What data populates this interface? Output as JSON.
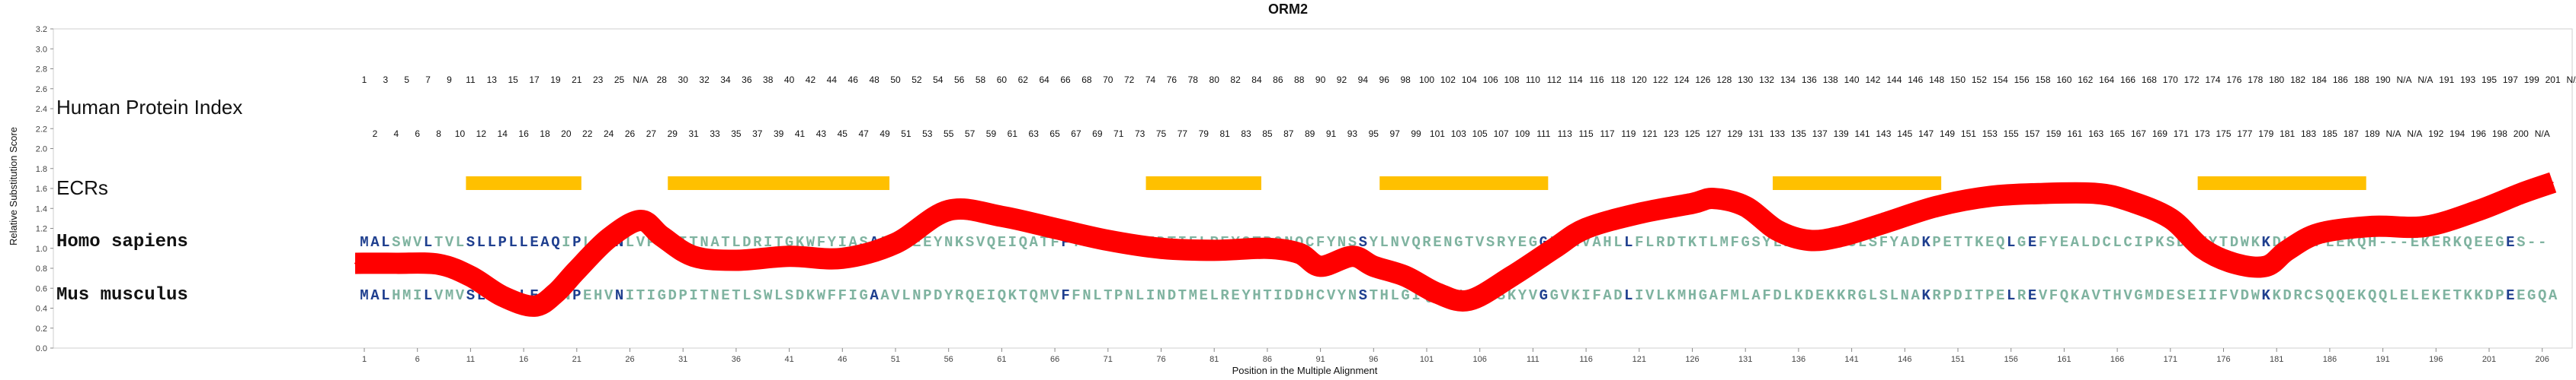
{
  "chart_data": {
    "type": "line",
    "title": "ORM2",
    "xlabel": "Position in the Multiple Alignment",
    "ylabel": "Relative Substitution Score",
    "ylim": [
      0,
      3.2
    ],
    "yticks": [
      "0.0",
      "0.2",
      "0.4",
      "0.6",
      "0.8",
      "1.0",
      "1.2",
      "1.4",
      "1.6",
      "1.8",
      "2.0",
      "2.2",
      "2.4",
      "2.6",
      "2.8",
      "3.0",
      "3.2"
    ],
    "xlim": [
      1,
      207
    ],
    "xtick_labels": [
      "1",
      "6",
      "11",
      "16",
      "21",
      "26",
      "31",
      "36",
      "41",
      "46",
      "51",
      "56",
      "61",
      "66",
      "71",
      "76",
      "81",
      "86",
      "91",
      "96",
      "101",
      "106",
      "111",
      "116",
      "121",
      "126",
      "131",
      "136",
      "141",
      "146",
      "151",
      "156",
      "161",
      "166",
      "171",
      "176",
      "181",
      "186",
      "191",
      "196",
      "201",
      "206"
    ],
    "series": [
      {
        "color": "#ff0000",
        "x": [
          1,
          4,
          8,
          11,
          14,
          17,
          19,
          21,
          24,
          27,
          29,
          32,
          36,
          41,
          46,
          51,
          56,
          61,
          66,
          71,
          76,
          81,
          86,
          89,
          91,
          94,
          96,
          99,
          102,
          105,
          109,
          113,
          116,
          121,
          126,
          128,
          131,
          134,
          137,
          140,
          144,
          149,
          154,
          159,
          164,
          167,
          171,
          174,
          177,
          180,
          182,
          185,
          190,
          195,
          200,
          204,
          207
        ],
        "y": [
          0.85,
          0.85,
          0.84,
          0.72,
          0.52,
          0.42,
          0.55,
          0.78,
          1.1,
          1.28,
          1.12,
          0.92,
          0.88,
          0.92,
          0.9,
          1.05,
          1.38,
          1.32,
          1.2,
          1.08,
          1.0,
          0.98,
          1.0,
          0.95,
          0.82,
          0.92,
          0.82,
          0.72,
          0.55,
          0.48,
          0.72,
          1.0,
          1.2,
          1.35,
          1.45,
          1.5,
          1.42,
          1.18,
          1.08,
          1.12,
          1.25,
          1.42,
          1.52,
          1.55,
          1.55,
          1.48,
          1.3,
          1.0,
          0.85,
          0.82,
          0.98,
          1.15,
          1.22,
          1.22,
          1.38,
          1.55,
          1.66
        ]
      }
    ]
  },
  "human_index_label": "Human Protein Index",
  "human_index_top": [
    "1",
    "3",
    "5",
    "7",
    "9",
    "11",
    "13",
    "15",
    "17",
    "19",
    "21",
    "23",
    "25",
    "N/A",
    "28",
    "30",
    "32",
    "34",
    "36",
    "38",
    "40",
    "42",
    "44",
    "46",
    "48",
    "50",
    "52",
    "54",
    "56",
    "58",
    "60",
    "62",
    "64",
    "66",
    "68",
    "70",
    "72",
    "74",
    "76",
    "78",
    "80",
    "82",
    "84",
    "86",
    "88",
    "90",
    "92",
    "94",
    "96",
    "98",
    "100",
    "102",
    "104",
    "106",
    "108",
    "110",
    "112",
    "114",
    "116",
    "118",
    "120",
    "122",
    "124",
    "126",
    "128",
    "130",
    "132",
    "134",
    "136",
    "138",
    "140",
    "142",
    "144",
    "146",
    "148",
    "150",
    "152",
    "154",
    "156",
    "158",
    "160",
    "162",
    "164",
    "166",
    "168",
    "170",
    "172",
    "174",
    "176",
    "178",
    "180",
    "182",
    "184",
    "186",
    "188",
    "190",
    "N/A",
    "N/A",
    "191",
    "193",
    "195",
    "197",
    "199",
    "201",
    "N/A"
  ],
  "human_index_bottom": [
    "2",
    "4",
    "6",
    "8",
    "10",
    "12",
    "14",
    "16",
    "18",
    "20",
    "22",
    "24",
    "26",
    "27",
    "29",
    "31",
    "33",
    "35",
    "37",
    "39",
    "41",
    "43",
    "45",
    "47",
    "49",
    "51",
    "53",
    "55",
    "57",
    "59",
    "61",
    "63",
    "65",
    "67",
    "69",
    "71",
    "73",
    "75",
    "77",
    "79",
    "81",
    "83",
    "85",
    "87",
    "89",
    "91",
    "93",
    "95",
    "97",
    "99",
    "101",
    "103",
    "105",
    "107",
    "109",
    "111",
    "113",
    "115",
    "117",
    "119",
    "121",
    "123",
    "125",
    "127",
    "129",
    "131",
    "133",
    "135",
    "137",
    "139",
    "141",
    "143",
    "145",
    "147",
    "149",
    "151",
    "153",
    "155",
    "157",
    "159",
    "161",
    "163",
    "165",
    "167",
    "169",
    "171",
    "173",
    "175",
    "177",
    "179",
    "181",
    "183",
    "185",
    "187",
    "189",
    "N/A",
    "N/A",
    "192",
    "194",
    "196",
    "198",
    "200",
    "N/A"
  ],
  "ecr_label": "ECRs",
  "ecr_color": "#ffc000",
  "ecrs": [
    [
      11,
      21
    ],
    [
      30,
      50
    ],
    [
      75,
      85
    ],
    [
      97,
      112
    ],
    [
      134,
      149
    ],
    [
      174,
      189
    ]
  ],
  "sequences": [
    {
      "species": "Homo sapiens",
      "residues": "MALSWVLTVLSLLPLLEAQIPLCANLVPVPITNATLDRITGKWFYIASAFRNEEYNKSVQEIQATFFYFTPNKTEDTIFLREYQTRQNQCFYNSSYLNVQRENGTVSRYEGGREHVAHLLFLRDTKTLMFGSYLDDEKNWGLSFYADKPETTKEQLGEFYEALDCLCIPKSDVVYTDWKKDKCEPLEKQH---EKERKQEEGES--"
    },
    {
      "species": "Mus musculus",
      "residues": "MALHMILVMVSLLPLLEAQNPEHVNITIGDPITNETLSWLSDKWFFIGAAVLNPDYRQEIQKTQMVFFNLTPNLINDTMELREYHTIDDHCVYNSTHLGIQRENGTLSKYVGGVKIFADLIVLKMHGAFMLAFDLKDEKKRGLSLNAKRPDITPELREVFQKAVTHVGMDESEIIFVDWKKDRCSQQEKQQLELEKETKKDPEEGQA"
    }
  ],
  "colors": {
    "conserved": "#1f3f8f",
    "variable": "#7fb3a0",
    "curve": "#ff0000",
    "ecr": "#ffc000"
  }
}
